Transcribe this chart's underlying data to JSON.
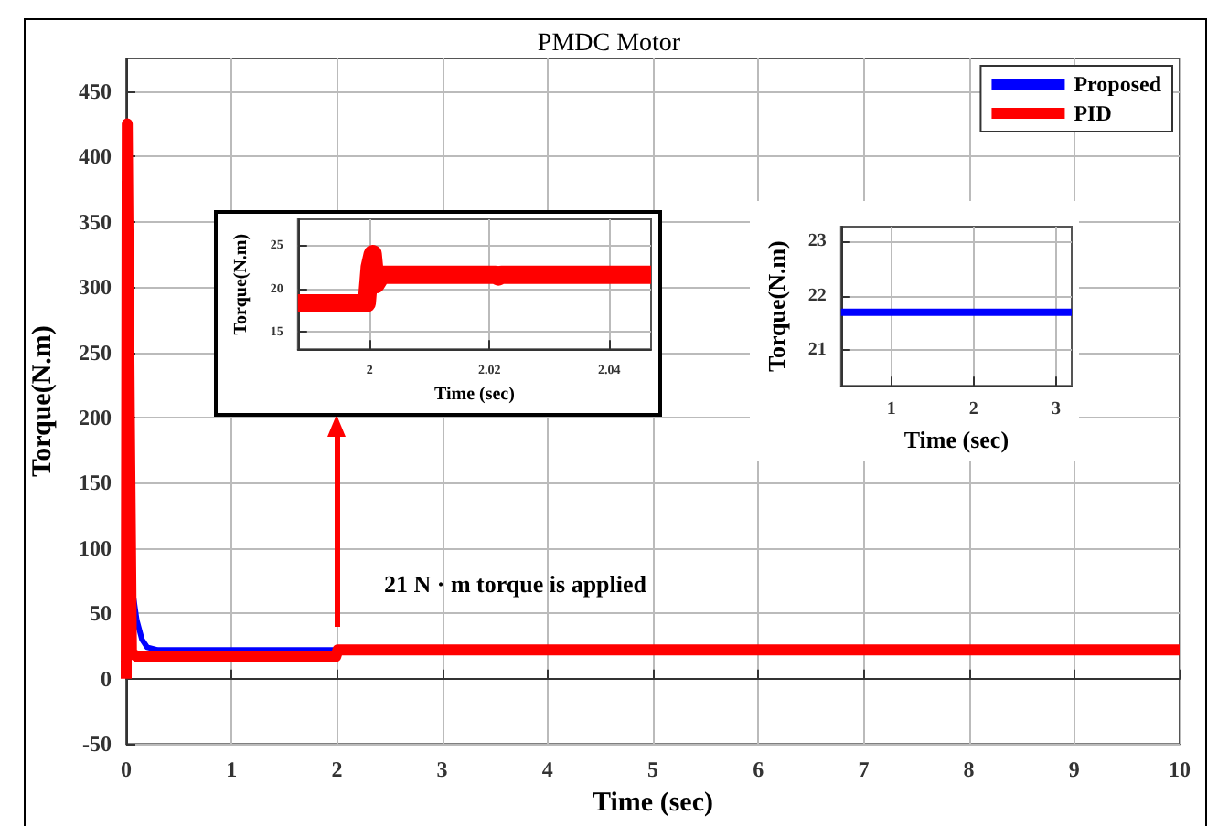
{
  "chart_data": [
    {
      "type": "line",
      "title": "PMDC Motor",
      "xlabel": "Time (sec)",
      "ylabel": "Torque(N.m)",
      "xlim": [
        0,
        10
      ],
      "ylim": [
        -50,
        475
      ],
      "xticks": [
        0,
        1,
        2,
        3,
        4,
        5,
        6,
        7,
        8,
        9,
        10
      ],
      "yticks": [
        -50,
        0,
        50,
        100,
        150,
        200,
        250,
        300,
        350,
        400,
        450
      ],
      "grid": true,
      "legend": "top right",
      "marker": "none",
      "line_style": "solid",
      "series": [
        {
          "name": "Proposed",
          "color": "#0000ff",
          "x": [
            0.02,
            0.07,
            0.1,
            0.15,
            0.2,
            0.3,
            2
          ],
          "values": [
            100,
            62,
            45,
            30,
            24,
            22,
            22
          ]
        },
        {
          "name": "PID",
          "color": "#ff0000",
          "x": [
            0,
            0.01,
            0.03,
            0.05,
            0.1,
            1.99,
            2.01,
            4,
            10
          ],
          "values": [
            0,
            425,
            200,
            20,
            17,
            17,
            22,
            22,
            22
          ]
        }
      ],
      "annotations": [
        "21 N · m torque is applied"
      ]
    },
    {
      "type": "line",
      "xlabel": "Time (sec)",
      "ylabel": "Torque(N.m)",
      "xlim": [
        1.988,
        2.047
      ],
      "ylim": [
        13,
        28
      ],
      "xticks": [
        2,
        2.02,
        2.04
      ],
      "yticks": [
        15,
        20,
        25
      ],
      "grid": true,
      "marker": "none",
      "line_style": "solid",
      "series": [
        {
          "color": "#ff0000",
          "x": [
            1.988,
            1.9995,
            2.0,
            2.0005,
            2.001,
            2.002,
            2.021,
            2.0215,
            2.022,
            2.047
          ],
          "values": [
            18.3,
            18.3,
            22.5,
            24,
            20.5,
            21.6,
            21.6,
            21.4,
            21.6,
            21.6
          ]
        }
      ]
    },
    {
      "type": "line",
      "xlabel": "Time (sec)",
      "ylabel": "Torque(N.m)",
      "xlim": [
        0.39,
        3.19
      ],
      "ylim": [
        20.35,
        23.27
      ],
      "xticks": [
        1,
        2,
        3
      ],
      "yticks": [
        21,
        22,
        23
      ],
      "grid": true,
      "marker": "none",
      "line_style": "solid",
      "series": [
        {
          "color": "#0000ff",
          "x": [
            0.39,
            3.19
          ],
          "values": [
            21.7,
            21.7
          ]
        }
      ]
    }
  ]
}
